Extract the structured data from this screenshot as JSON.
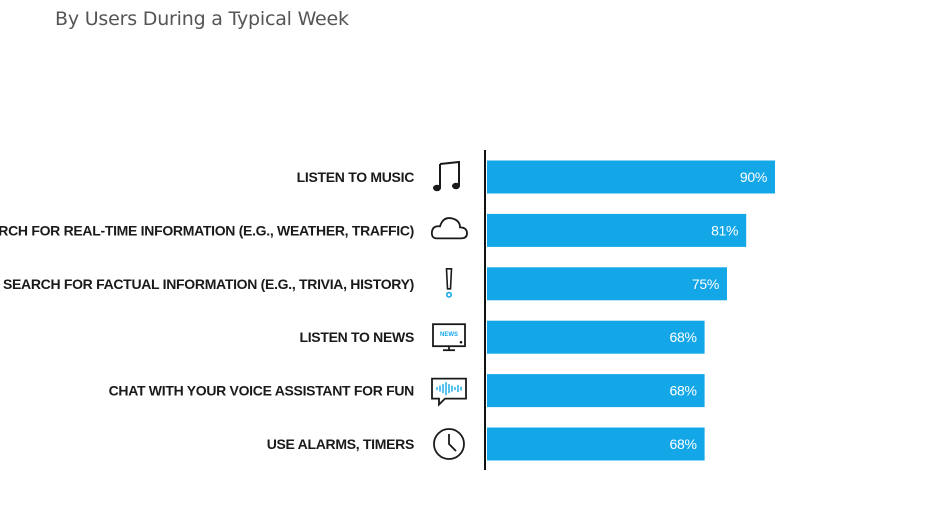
{
  "subtitle": "By Users During a Typical Week",
  "colors": {
    "bar": "#13A7E8",
    "axis": "#111111",
    "icon": "#1a1a1a",
    "icon_accent": "#13A7E8"
  },
  "chart_data": {
    "type": "bar",
    "orientation": "horizontal",
    "title": "By Users During a Typical Week",
    "categories": [
      "LISTEN TO MUSIC",
      "SEARCH FOR REAL-TIME INFORMATION (E.G., WEATHER, TRAFFIC)",
      "SEARCH FOR FACTUAL INFORMATION (E.G., TRIVIA, HISTORY)",
      "LISTEN TO NEWS",
      "CHAT WITH YOUR VOICE ASSISTANT FOR FUN",
      "USE ALARMS, TIMERS"
    ],
    "values": [
      90,
      81,
      75,
      68,
      68,
      68
    ],
    "value_labels": [
      "90%",
      "81%",
      "75%",
      "68%",
      "68%",
      "68%"
    ],
    "icons": [
      "music-note-icon",
      "cloud-icon",
      "exclamation-icon",
      "news-tv-icon",
      "voice-chat-icon",
      "clock-icon"
    ],
    "icon_texts": [
      "",
      "",
      "",
      "NEWS",
      "",
      ""
    ],
    "unit": "%",
    "xlim": [
      0,
      100
    ],
    "grid": false,
    "legend": "none"
  }
}
